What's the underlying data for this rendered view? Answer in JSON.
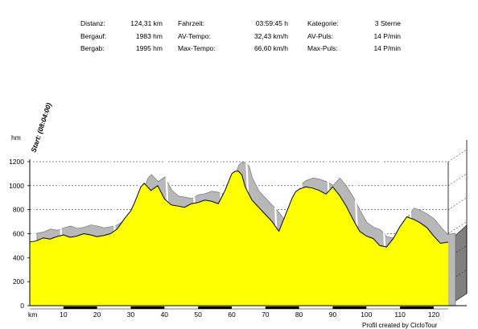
{
  "stats": [
    [
      {
        "label": "Distanz:",
        "value": "124,31 km"
      },
      {
        "label": "Fahrzeit:",
        "value": "03:59:45 h"
      },
      {
        "label": "Kategorie:",
        "value": "3 Sterne"
      }
    ],
    [
      {
        "label": "Bergauf:",
        "value": "1983 hm"
      },
      {
        "label": "AV-Tempo:",
        "value": "32,43 km/h"
      },
      {
        "label": "AV-Puls:",
        "value": "14 P/min"
      }
    ],
    [
      {
        "label": "Bergab:",
        "value": "1995 hm"
      },
      {
        "label": "Max-Tempo:",
        "value": "66,60 km/h"
      },
      {
        "label": "Max-Puls:",
        "value": "14 P/min"
      }
    ]
  ],
  "start_label": "Start: (08:04:00)",
  "credit": "Profil created by CicloTour",
  "colors": {
    "fill": "#ffff00",
    "shadow": "#b8b8b8",
    "wall": "#808080",
    "grid": "#000000"
  },
  "chart_data": {
    "type": "area",
    "ylabel": "hm",
    "xlabel": "km",
    "ylim": [
      0,
      1200
    ],
    "xlim": [
      0,
      124.31
    ],
    "grid": true,
    "y_ticks": [
      0,
      200,
      400,
      600,
      800,
      1000,
      1200
    ],
    "x_ticks": [
      10,
      20,
      30,
      40,
      50,
      60,
      70,
      80,
      90,
      100,
      110,
      120
    ],
    "series": [
      {
        "x": [
          0,
          2,
          4,
          6,
          8,
          10,
          12,
          14,
          16,
          18,
          20,
          22,
          24,
          26,
          28,
          30,
          31,
          32,
          33,
          34,
          35,
          36,
          38,
          40,
          42,
          44,
          46,
          48,
          50,
          52,
          54,
          56,
          58,
          60,
          61,
          62,
          63,
          64,
          66,
          68,
          70,
          72,
          74,
          76,
          78,
          79,
          80,
          82,
          84,
          86,
          88,
          89,
          90,
          92,
          94,
          96,
          98,
          100,
          102,
          104,
          106,
          108,
          110,
          112,
          114,
          116,
          118,
          120,
          122,
          124.31
        ],
        "y": [
          530,
          540,
          565,
          555,
          575,
          590,
          570,
          580,
          600,
          590,
          575,
          585,
          600,
          640,
          720,
          790,
          850,
          920,
          990,
          1020,
          990,
          960,
          1000,
          890,
          840,
          830,
          820,
          850,
          860,
          880,
          870,
          850,
          960,
          1100,
          1120,
          1120,
          1090,
          990,
          880,
          820,
          760,
          700,
          620,
          760,
          900,
          950,
          970,
          990,
          980,
          960,
          930,
          960,
          990,
          920,
          830,
          720,
          620,
          580,
          560,
          500,
          490,
          560,
          660,
          740,
          720,
          690,
          650,
          580,
          520,
          530
        ]
      }
    ],
    "offset_stripes": [
      0,
      8,
      24,
      32,
      40,
      48,
      56,
      64,
      72,
      80,
      88,
      96,
      104,
      112
    ]
  }
}
